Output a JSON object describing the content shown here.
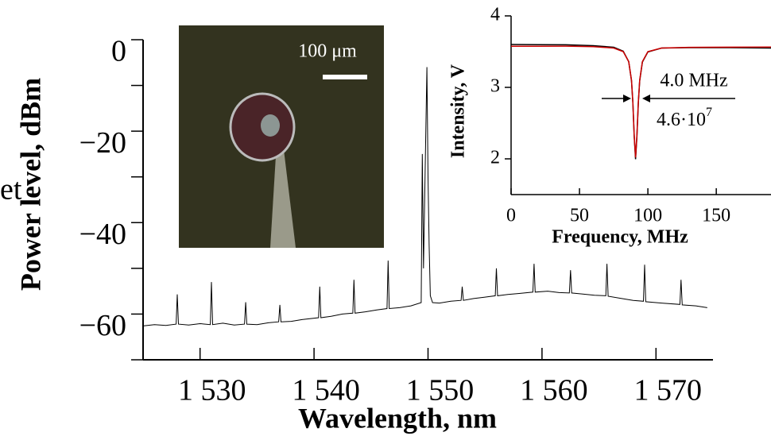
{
  "chart_data": [
    {
      "type": "line",
      "x_label": "Wavelength, nm",
      "y_label": "Power level, dBm",
      "annotation": "et",
      "xlim": [
        1525,
        1575
      ],
      "ylim": [
        -70,
        0
      ],
      "xticks": [
        {
          "value": 1530,
          "label": "1 530"
        },
        {
          "value": 1540,
          "label": "1 540"
        },
        {
          "value": 1550,
          "label": "1 550"
        },
        {
          "value": 1560,
          "label": "1 560"
        },
        {
          "value": 1570,
          "label": "1 570"
        }
      ],
      "yticks": [
        {
          "value": -60,
          "label": "−60"
        },
        {
          "value": -40,
          "label": "−40"
        },
        {
          "value": -20,
          "label": "−20"
        },
        0
      ],
      "y_minor_ticks": [
        -70,
        -50,
        -30,
        -10
      ],
      "scale_bar": "100 μm",
      "series": [
        {
          "color": "#000000",
          "x": [
            1525,
            1526,
            1527,
            1527.9,
            1528,
            1528.1,
            1529,
            1530,
            1530.9,
            1531,
            1531.1,
            1532,
            1533,
            1533.9,
            1534,
            1534.1,
            1535,
            1536,
            1536.9,
            1537,
            1537.1,
            1538,
            1539,
            1540.4,
            1540.5,
            1540.6,
            1541.5,
            1542.5,
            1543.4,
            1543.5,
            1543.6,
            1544.5,
            1545.5,
            1546.4,
            1546.5,
            1546.6,
            1547.5,
            1548.5,
            1549.4,
            1549.5,
            1549.6,
            1549.9,
            1550,
            1550.1,
            1550.2,
            1550.4,
            1551,
            1552,
            1552.9,
            1553,
            1553.1,
            1554,
            1555,
            1555.9,
            1556,
            1556.1,
            1557,
            1558,
            1559.2,
            1559.3,
            1559.4,
            1560.5,
            1561.5,
            1562.4,
            1562.5,
            1562.6,
            1563.5,
            1564.6,
            1565.6,
            1565.7,
            1565.8,
            1567,
            1568,
            1568.9,
            1569,
            1569.1,
            1570.5,
            1572.1,
            1572.2,
            1572.3,
            1573.5,
            1574.5
          ],
          "values": [
            -62.6,
            -62.3,
            -62.5,
            -62.2,
            -55.7,
            -62.2,
            -62.4,
            -62.1,
            -62.3,
            -53.0,
            -62.3,
            -62.0,
            -62.4,
            -62.2,
            -57.4,
            -62.2,
            -62.3,
            -61.9,
            -61.7,
            -58.0,
            -61.7,
            -61.6,
            -61.2,
            -60.8,
            -54.0,
            -60.8,
            -60.5,
            -60.0,
            -59.8,
            -52.5,
            -59.8,
            -59.5,
            -59.1,
            -58.8,
            -48.3,
            -58.8,
            -58.6,
            -58.2,
            -57.5,
            -25,
            -50,
            -6,
            -30,
            -45,
            -56,
            -57.5,
            -57.6,
            -57.2,
            -57.0,
            -54.0,
            -57.0,
            -56.6,
            -56.3,
            -56.0,
            -50.0,
            -56.0,
            -55.7,
            -55.5,
            -55.2,
            -49.0,
            -55.2,
            -55.0,
            -55.3,
            -55.4,
            -50.4,
            -55.4,
            -55.6,
            -55.9,
            -56.0,
            -49.0,
            -56.1,
            -56.6,
            -57.0,
            -57.2,
            -49.2,
            -57.3,
            -57.6,
            -57.9,
            -52.5,
            -58.0,
            -58.2,
            -58.6
          ]
        }
      ]
    },
    {
      "type": "line",
      "x_label": "Frequency, MHz",
      "y_label": "Intensity, V",
      "linewidth_label": "4.0 MHz",
      "q_factor": "4.6·10",
      "q_exponent": "7",
      "xlim": [
        0,
        190
      ],
      "ylim": [
        1.5,
        4
      ],
      "xticks": [
        0,
        50,
        100,
        150
      ],
      "yticks": [
        2,
        3,
        4
      ],
      "series": [
        {
          "color": "#000000",
          "x": [
            0,
            20,
            40,
            60,
            75,
            82,
            86,
            88,
            89,
            90,
            91,
            92,
            93,
            94,
            96,
            100,
            110,
            130,
            160,
            190
          ],
          "values": [
            3.6,
            3.598,
            3.595,
            3.583,
            3.561,
            3.506,
            3.36,
            3.091,
            2.786,
            2.311,
            1.994,
            2.31,
            2.785,
            3.09,
            3.355,
            3.496,
            3.55,
            3.556,
            3.555,
            3.55
          ]
        },
        {
          "color": "#cc0000",
          "x": [
            0,
            20,
            40,
            60,
            75,
            82,
            86,
            88,
            89,
            90,
            91,
            92,
            93,
            94,
            96,
            100,
            110,
            130,
            160,
            190
          ],
          "values": [
            3.575,
            3.576,
            3.577,
            3.57,
            3.55,
            3.5,
            3.36,
            3.1,
            2.8,
            2.33,
            2.02,
            2.33,
            2.8,
            3.1,
            3.36,
            3.5,
            3.55,
            3.56,
            3.562,
            3.565
          ]
        }
      ]
    }
  ]
}
